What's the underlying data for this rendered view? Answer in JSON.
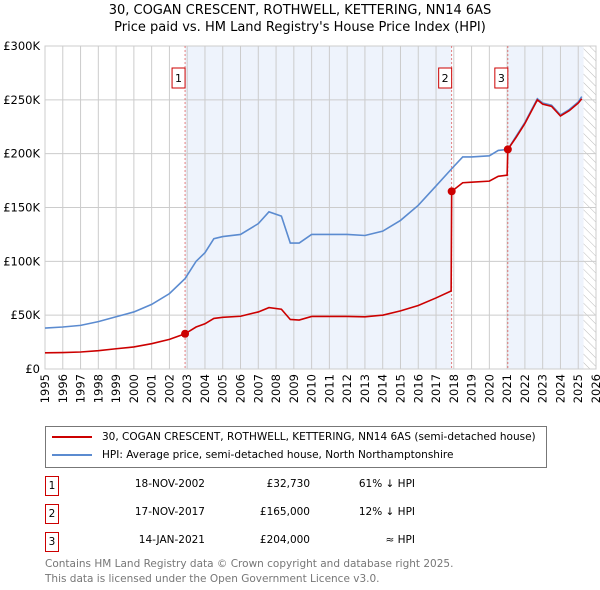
{
  "chart_data": {
    "type": "line",
    "title": "30, COGAN CRESCENT, ROTHWELL, KETTERING, NN14 6AS",
    "subtitle": "Price paid vs. HM Land Registry's House Price Index (HPI)",
    "xlim": [
      1995,
      2026
    ],
    "ylim": [
      0,
      300000
    ],
    "x_ticks": [
      "1995",
      "1996",
      "1997",
      "1998",
      "1999",
      "2000",
      "2001",
      "2002",
      "2003",
      "2004",
      "2005",
      "2006",
      "2007",
      "2008",
      "2009",
      "2010",
      "2011",
      "2012",
      "2013",
      "2014",
      "2015",
      "2016",
      "2017",
      "2018",
      "2019",
      "2020",
      "2021",
      "2022",
      "2023",
      "2024",
      "2025",
      "2026"
    ],
    "y_ticks": [
      {
        "v": 0,
        "label": "£0"
      },
      {
        "v": 50000,
        "label": "£50K"
      },
      {
        "v": 100000,
        "label": "£100K"
      },
      {
        "v": 150000,
        "label": "£150K"
      },
      {
        "v": 200000,
        "label": "£200K"
      },
      {
        "v": 250000,
        "label": "£250K"
      },
      {
        "v": 300000,
        "label": "£300K"
      }
    ],
    "grid": true,
    "forecast_from": 2025.3,
    "shaded_ranges": [
      [
        2002.88,
        2017.88
      ],
      [
        2021.04,
        2025.3
      ]
    ],
    "colors": {
      "property": "#cc0000",
      "hpi": "#5b8bd0",
      "shade": "#eef3fc"
    },
    "series": [
      {
        "name": "30, COGAN CRESCENT, ROTHWELL, KETTERING, NN14 6AS (semi-detached house)",
        "color": "#cc0000",
        "points": [
          [
            1995,
            15000
          ],
          [
            1996,
            15300
          ],
          [
            1997,
            15800
          ],
          [
            1998,
            17000
          ],
          [
            1999,
            18800
          ],
          [
            2000,
            20500
          ],
          [
            2001,
            23500
          ],
          [
            2002,
            27500
          ],
          [
            2002.88,
            32730
          ],
          [
            2003.5,
            39000
          ],
          [
            2004,
            42000
          ],
          [
            2004.5,
            47000
          ],
          [
            2005,
            48000
          ],
          [
            2006,
            49000
          ],
          [
            2007,
            53000
          ],
          [
            2007.6,
            57000
          ],
          [
            2008.3,
            55500
          ],
          [
            2008.8,
            46000
          ],
          [
            2009.3,
            45500
          ],
          [
            2010,
            48800
          ],
          [
            2011,
            48800
          ],
          [
            2012,
            48800
          ],
          [
            2013,
            48500
          ],
          [
            2014,
            50000
          ],
          [
            2015,
            54000
          ],
          [
            2016,
            59000
          ],
          [
            2017,
            66000
          ],
          [
            2017.85,
            72500
          ],
          [
            2017.88,
            165000
          ],
          [
            2018.5,
            173000
          ],
          [
            2019,
            173500
          ],
          [
            2020,
            174500
          ],
          [
            2020.5,
            179000
          ],
          [
            2021.0,
            180000
          ],
          [
            2021.04,
            204000
          ],
          [
            2021.5,
            215000
          ],
          [
            2022,
            228000
          ],
          [
            2022.7,
            250000
          ],
          [
            2023,
            246000
          ],
          [
            2023.5,
            244000
          ],
          [
            2024,
            235000
          ],
          [
            2024.5,
            240000
          ],
          [
            2025,
            247000
          ],
          [
            2025.2,
            251000
          ]
        ]
      },
      {
        "name": "HPI: Average price, semi-detached house, North Northamptonshire",
        "color": "#5b8bd0",
        "points": [
          [
            1995,
            38000
          ],
          [
            1996,
            39000
          ],
          [
            1997,
            40500
          ],
          [
            1998,
            44000
          ],
          [
            1999,
            48500
          ],
          [
            2000,
            53000
          ],
          [
            2001,
            60000
          ],
          [
            2002,
            70000
          ],
          [
            2002.88,
            84000
          ],
          [
            2003.5,
            100000
          ],
          [
            2004,
            108000
          ],
          [
            2004.5,
            121000
          ],
          [
            2005,
            123000
          ],
          [
            2006,
            125000
          ],
          [
            2007,
            135000
          ],
          [
            2007.6,
            146000
          ],
          [
            2008.3,
            142000
          ],
          [
            2008.8,
            117000
          ],
          [
            2009.3,
            117000
          ],
          [
            2010,
            125000
          ],
          [
            2011,
            125000
          ],
          [
            2012,
            125000
          ],
          [
            2013,
            124000
          ],
          [
            2014,
            128000
          ],
          [
            2015,
            138000
          ],
          [
            2016,
            152000
          ],
          [
            2017,
            170000
          ],
          [
            2017.88,
            186000
          ],
          [
            2018.5,
            197000
          ],
          [
            2019,
            197000
          ],
          [
            2020,
            198000
          ],
          [
            2020.5,
            203000
          ],
          [
            2021.04,
            204000
          ],
          [
            2021.5,
            216000
          ],
          [
            2022,
            229000
          ],
          [
            2022.7,
            251000
          ],
          [
            2023,
            247000
          ],
          [
            2023.5,
            245000
          ],
          [
            2024,
            236000
          ],
          [
            2024.5,
            241000
          ],
          [
            2025,
            248000
          ],
          [
            2025.2,
            253000
          ]
        ]
      }
    ],
    "sales": [
      {
        "label": "1",
        "x": 2002.88,
        "y": 32730
      },
      {
        "label": "2",
        "x": 2017.88,
        "y": 165000
      },
      {
        "label": "3",
        "x": 2021.04,
        "y": 204000
      }
    ]
  },
  "legend": {
    "property": "30, COGAN CRESCENT, ROTHWELL, KETTERING, NN14 6AS (semi-detached house)",
    "hpi": "HPI: Average price, semi-detached house, North Northamptonshire"
  },
  "transactions": [
    {
      "num": "1",
      "date": "18-NOV-2002",
      "price": "£32,730",
      "rel": "61% ↓ HPI"
    },
    {
      "num": "2",
      "date": "17-NOV-2017",
      "price": "£165,000",
      "rel": "12% ↓ HPI"
    },
    {
      "num": "3",
      "date": "14-JAN-2021",
      "price": "£204,000",
      "rel": "≈ HPI"
    }
  ],
  "footer": {
    "line1": "Contains HM Land Registry data © Crown copyright and database right 2025.",
    "line2": "This data is licensed under the Open Government Licence v3.0."
  }
}
